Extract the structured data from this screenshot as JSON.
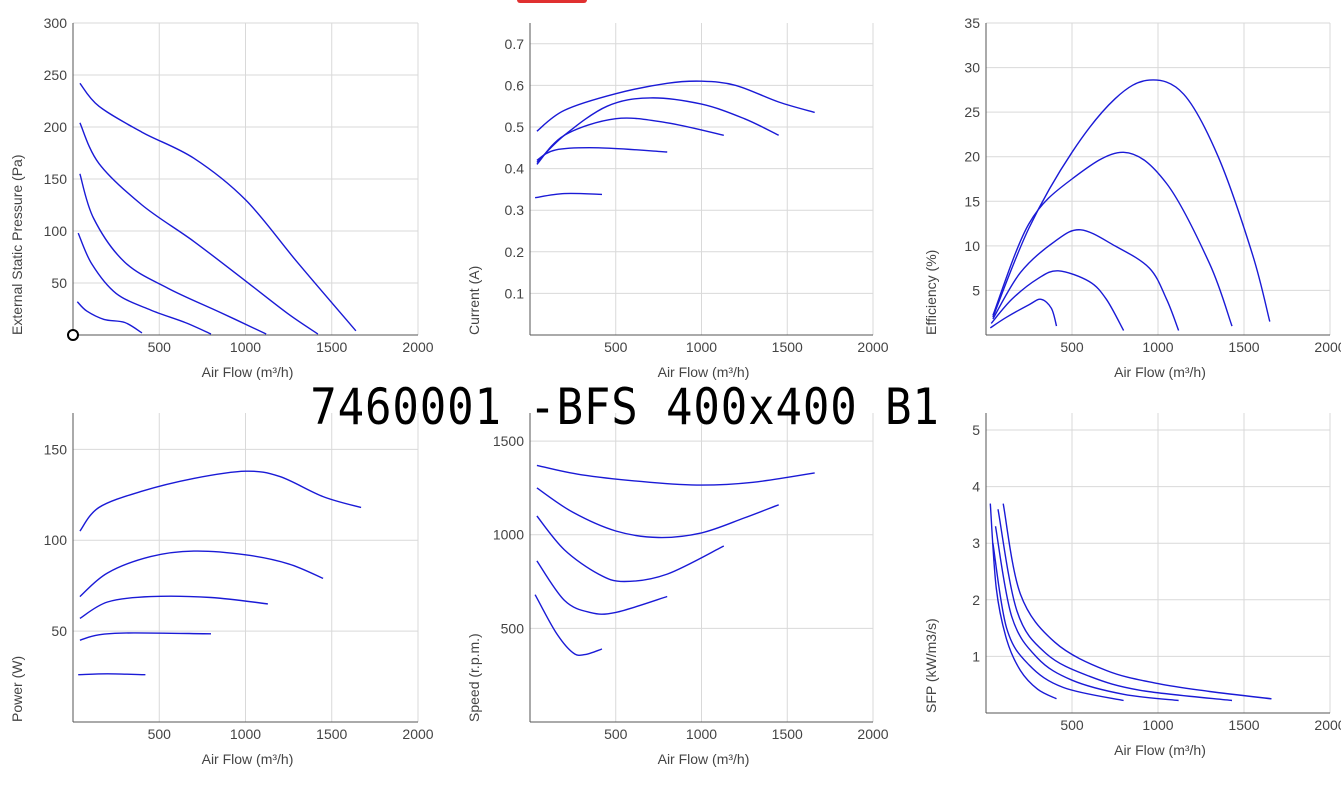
{
  "page": {
    "title": "7460001 -BFS 400x400 B1",
    "accent_color": "#e03030",
    "curve_color": "#1a1ad6"
  },
  "chart_data": [
    {
      "id": "pressure",
      "type": "line",
      "ylabel": "External Static Pressure (Pa)",
      "xlabel": "Air Flow (m³/h)",
      "xlim": [
        0,
        2000
      ],
      "ylim": [
        0,
        300
      ],
      "xticks": [
        500,
        1000,
        1500,
        2000
      ],
      "yticks": [
        50,
        100,
        150,
        200,
        250,
        300
      ],
      "grid": true,
      "marker_at_origin": true,
      "series": [
        {
          "points": [
            [
              40,
              242
            ],
            [
              150,
              220
            ],
            [
              400,
              195
            ],
            [
              700,
              170
            ],
            [
              1000,
              130
            ],
            [
              1300,
              70
            ],
            [
              1640,
              4
            ]
          ]
        },
        {
          "points": [
            [
              40,
              204
            ],
            [
              150,
              165
            ],
            [
              400,
              125
            ],
            [
              700,
              90
            ],
            [
              1000,
              52
            ],
            [
              1250,
              20
            ],
            [
              1420,
              1
            ]
          ]
        },
        {
          "points": [
            [
              40,
              155
            ],
            [
              120,
              112
            ],
            [
              300,
              70
            ],
            [
              550,
              45
            ],
            [
              850,
              22
            ],
            [
              1120,
              1
            ]
          ]
        },
        {
          "points": [
            [
              30,
              98
            ],
            [
              110,
              68
            ],
            [
              250,
              40
            ],
            [
              450,
              24
            ],
            [
              650,
              12
            ],
            [
              800,
              1
            ]
          ]
        },
        {
          "points": [
            [
              25,
              32
            ],
            [
              80,
              23
            ],
            [
              180,
              15
            ],
            [
              300,
              12
            ],
            [
              400,
              2
            ]
          ]
        }
      ]
    },
    {
      "id": "current",
      "type": "line",
      "ylabel": "Current (A)",
      "xlabel": "Air Flow (m³/h)",
      "xlim": [
        0,
        2000
      ],
      "ylim": [
        0,
        0.75
      ],
      "xticks": [
        500,
        1000,
        1500,
        2000
      ],
      "yticks": [
        0.1,
        0.2,
        0.3,
        0.4,
        0.5,
        0.6,
        0.7
      ],
      "grid": true,
      "series": [
        {
          "points": [
            [
              40,
              0.49
            ],
            [
              200,
              0.54
            ],
            [
              500,
              0.58
            ],
            [
              800,
              0.605
            ],
            [
              1000,
              0.61
            ],
            [
              1200,
              0.6
            ],
            [
              1450,
              0.56
            ],
            [
              1660,
              0.535
            ]
          ]
        },
        {
          "points": [
            [
              40,
              0.415
            ],
            [
              200,
              0.48
            ],
            [
              450,
              0.55
            ],
            [
              700,
              0.57
            ],
            [
              1000,
              0.555
            ],
            [
              1250,
              0.52
            ],
            [
              1450,
              0.48
            ]
          ]
        },
        {
          "points": [
            [
              40,
              0.41
            ],
            [
              200,
              0.48
            ],
            [
              500,
              0.52
            ],
            [
              800,
              0.51
            ],
            [
              1130,
              0.48
            ]
          ]
        },
        {
          "points": [
            [
              40,
              0.42
            ],
            [
              150,
              0.445
            ],
            [
              400,
              0.45
            ],
            [
              800,
              0.44
            ]
          ]
        },
        {
          "points": [
            [
              30,
              0.33
            ],
            [
              200,
              0.34
            ],
            [
              420,
              0.338
            ]
          ]
        }
      ]
    },
    {
      "id": "efficiency",
      "type": "line",
      "ylabel": "Efficiency (%)",
      "xlabel": "Air Flow (m³/h)",
      "xlim": [
        0,
        2000
      ],
      "ylim": [
        0,
        35
      ],
      "xticks": [
        500,
        1000,
        1500,
        2000
      ],
      "yticks": [
        5,
        10,
        15,
        20,
        25,
        30,
        35
      ],
      "grid": true,
      "series": [
        {
          "points": [
            [
              40,
              2
            ],
            [
              250,
              12
            ],
            [
              500,
              20.5
            ],
            [
              750,
              26.5
            ],
            [
              950,
              28.6
            ],
            [
              1150,
              27
            ],
            [
              1350,
              20
            ],
            [
              1550,
              9
            ],
            [
              1650,
              1.5
            ]
          ]
        },
        {
          "points": [
            [
              40,
              2.2
            ],
            [
              250,
              12.5
            ],
            [
              500,
              17.5
            ],
            [
              800,
              20.5
            ],
            [
              1050,
              17
            ],
            [
              1300,
              8
            ],
            [
              1430,
              1
            ]
          ]
        },
        {
          "points": [
            [
              40,
              1.8
            ],
            [
              200,
              7
            ],
            [
              400,
              10.5
            ],
            [
              550,
              11.8
            ],
            [
              750,
              10
            ],
            [
              950,
              7.5
            ],
            [
              1050,
              4
            ],
            [
              1120,
              0.5
            ]
          ]
        },
        {
          "points": [
            [
              30,
              1.3
            ],
            [
              150,
              4
            ],
            [
              300,
              6.3
            ],
            [
              420,
              7.2
            ],
            [
              600,
              6
            ],
            [
              700,
              4
            ],
            [
              800,
              0.5
            ]
          ]
        },
        {
          "points": [
            [
              25,
              0.8
            ],
            [
              120,
              2
            ],
            [
              250,
              3.4
            ],
            [
              320,
              4
            ],
            [
              380,
              3
            ],
            [
              410,
              1
            ]
          ]
        }
      ]
    },
    {
      "id": "power",
      "type": "line",
      "ylabel": "Power (W)",
      "xlabel": "Air Flow (m³/h)",
      "xlim": [
        0,
        2000
      ],
      "ylim": [
        0,
        170
      ],
      "xticks": [
        500,
        1000,
        1500,
        2000
      ],
      "yticks": [
        50,
        100,
        150
      ],
      "grid": true,
      "series": [
        {
          "points": [
            [
              40,
              105
            ],
            [
              150,
              118
            ],
            [
              400,
              127
            ],
            [
              700,
              134
            ],
            [
              1000,
              138
            ],
            [
              1200,
              135
            ],
            [
              1450,
              124
            ],
            [
              1670,
              118
            ]
          ]
        },
        {
          "points": [
            [
              40,
              69
            ],
            [
              200,
              82
            ],
            [
              450,
              91
            ],
            [
              700,
              94
            ],
            [
              1000,
              92
            ],
            [
              1250,
              87
            ],
            [
              1450,
              79
            ]
          ]
        },
        {
          "points": [
            [
              40,
              57
            ],
            [
              200,
              66
            ],
            [
              450,
              69
            ],
            [
              800,
              68.5
            ],
            [
              1130,
              65
            ]
          ]
        },
        {
          "points": [
            [
              40,
              45
            ],
            [
              150,
              48
            ],
            [
              350,
              49
            ],
            [
              800,
              48.5
            ]
          ]
        },
        {
          "points": [
            [
              30,
              26
            ],
            [
              200,
              26.5
            ],
            [
              420,
              26
            ]
          ]
        }
      ]
    },
    {
      "id": "speed",
      "type": "line",
      "ylabel": "Speed (r.p.m.)",
      "xlabel": "Air Flow (m³/h)",
      "xlim": [
        0,
        2000
      ],
      "ylim": [
        0,
        1650
      ],
      "xticks": [
        500,
        1000,
        1500,
        2000
      ],
      "yticks": [
        500,
        1000,
        1500
      ],
      "grid": true,
      "series": [
        {
          "points": [
            [
              40,
              1370
            ],
            [
              300,
              1320
            ],
            [
              700,
              1280
            ],
            [
              1000,
              1265
            ],
            [
              1300,
              1280
            ],
            [
              1660,
              1330
            ]
          ]
        },
        {
          "points": [
            [
              40,
              1250
            ],
            [
              250,
              1120
            ],
            [
              500,
              1020
            ],
            [
              750,
              985
            ],
            [
              1000,
              1010
            ],
            [
              1250,
              1090
            ],
            [
              1450,
              1160
            ]
          ]
        },
        {
          "points": [
            [
              40,
              1100
            ],
            [
              200,
              920
            ],
            [
              400,
              790
            ],
            [
              550,
              750
            ],
            [
              800,
              790
            ],
            [
              1130,
              940
            ]
          ]
        },
        {
          "points": [
            [
              40,
              860
            ],
            [
              200,
              650
            ],
            [
              350,
              585
            ],
            [
              500,
              585
            ],
            [
              800,
              670
            ]
          ]
        },
        {
          "points": [
            [
              30,
              680
            ],
            [
              150,
              480
            ],
            [
              250,
              370
            ],
            [
              320,
              360
            ],
            [
              420,
              390
            ]
          ]
        }
      ]
    },
    {
      "id": "sfp",
      "type": "line",
      "ylabel": "SFP (kW/m3/s)",
      "xlabel": "Air Flow (m³/h)",
      "xlim": [
        0,
        2000
      ],
      "ylim": [
        0,
        5.3
      ],
      "xticks": [
        500,
        1000,
        1500,
        2000
      ],
      "yticks": [
        1,
        2,
        3,
        4,
        5
      ],
      "grid": true,
      "series": [
        {
          "points": [
            [
              100,
              3.7
            ],
            [
              200,
              2.1
            ],
            [
              400,
              1.25
            ],
            [
              700,
              0.75
            ],
            [
              1000,
              0.52
            ],
            [
              1300,
              0.38
            ],
            [
              1660,
              0.25
            ]
          ]
        },
        {
          "points": [
            [
              70,
              3.6
            ],
            [
              180,
              1.8
            ],
            [
              350,
              1.05
            ],
            [
              600,
              0.65
            ],
            [
              900,
              0.4
            ],
            [
              1430,
              0.22
            ]
          ]
        },
        {
          "points": [
            [
              55,
              3.3
            ],
            [
              150,
              1.7
            ],
            [
              300,
              0.97
            ],
            [
              500,
              0.58
            ],
            [
              800,
              0.33
            ],
            [
              1120,
              0.22
            ]
          ]
        },
        {
          "points": [
            [
              40,
              3.0
            ],
            [
              120,
              1.5
            ],
            [
              250,
              0.85
            ],
            [
              450,
              0.45
            ],
            [
              800,
              0.22
            ]
          ]
        },
        {
          "points": [
            [
              25,
              3.7
            ],
            [
              60,
              2.2
            ],
            [
              120,
              1.3
            ],
            [
              200,
              0.75
            ],
            [
              300,
              0.42
            ],
            [
              410,
              0.25
            ]
          ]
        }
      ]
    }
  ]
}
